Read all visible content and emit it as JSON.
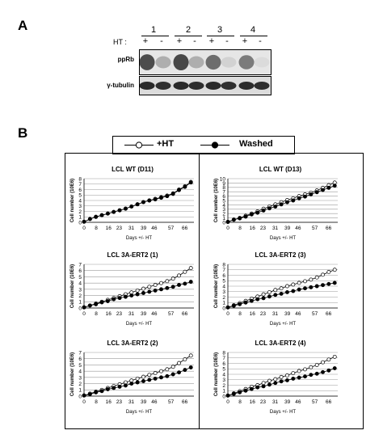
{
  "panel_a": {
    "letter": "A",
    "lanes": [
      "1",
      "2",
      "3",
      "4"
    ],
    "ht_label": "HT :",
    "ht_signs": [
      "+",
      "-",
      "+",
      "-",
      "+",
      "-",
      "+",
      "-"
    ],
    "blots": [
      {
        "label": "ppRb",
        "band_intensities": [
          0.78,
          0.3,
          0.8,
          0.3,
          0.62,
          0.12,
          0.55,
          0.08
        ]
      },
      {
        "label": "γ-tubulin",
        "band_intensities": [
          0.95,
          0.92,
          0.95,
          0.93,
          0.95,
          0.92,
          0.94,
          0.93
        ]
      }
    ]
  },
  "panel_b": {
    "letter": "B",
    "legend": {
      "items": [
        {
          "label": "+HT",
          "marker": "open-circle"
        },
        {
          "label": "Washed",
          "marker": "filled-circle"
        }
      ]
    }
  },
  "chart_data": [
    {
      "type": "line",
      "title": "LCL WT (D11)",
      "xlabel": "Days +/- HT",
      "ylabel": "Cell number (10E6)",
      "xticks": [
        "0",
        "8",
        "16",
        "23",
        "31",
        "39",
        "46",
        "57",
        "66"
      ],
      "ylim": [
        0,
        8
      ],
      "yticks": [
        0,
        1,
        2,
        3,
        4,
        5,
        6,
        7,
        8
      ],
      "series": [
        {
          "name": "+HT",
          "marker": "open",
          "values": [
            0.1,
            0.6,
            1.0,
            1.3,
            1.6,
            1.9,
            2.2,
            2.5,
            2.9,
            3.3,
            3.7,
            4.0,
            4.3,
            4.6,
            4.9,
            5.3,
            6.0,
            6.6,
            7.4
          ]
        },
        {
          "name": "Washed",
          "marker": "filled",
          "values": [
            0.1,
            0.6,
            1.0,
            1.3,
            1.6,
            1.9,
            2.2,
            2.5,
            2.9,
            3.3,
            3.7,
            4.0,
            4.2,
            4.5,
            4.8,
            5.2,
            5.9,
            6.5,
            7.3
          ]
        }
      ]
    },
    {
      "type": "line",
      "title": "LCL WT (D13)",
      "xlabel": "Days +/- HT",
      "ylabel": "Cell number (10E6)",
      "xticks": [
        "0",
        "8",
        "16",
        "23",
        "31",
        "39",
        "46",
        "57",
        "66"
      ],
      "ylim": [
        0,
        10
      ],
      "yticks": [
        0,
        1,
        2,
        3,
        4,
        5,
        6,
        7,
        8,
        9,
        10
      ],
      "series": [
        {
          "name": "+HT",
          "marker": "open",
          "values": [
            0.1,
            0.6,
            1.0,
            1.5,
            2.0,
            2.5,
            3.1,
            3.6,
            4.1,
            4.6,
            5.1,
            5.5,
            6.0,
            6.4,
            6.8,
            7.3,
            7.9,
            8.5,
            9.1
          ]
        },
        {
          "name": "Washed",
          "marker": "filled",
          "values": [
            0.1,
            0.6,
            0.9,
            1.3,
            1.8,
            2.2,
            2.7,
            3.2,
            3.6,
            4.1,
            4.6,
            5.0,
            5.5,
            5.9,
            6.4,
            6.9,
            7.4,
            7.9,
            8.4
          ]
        }
      ]
    },
    {
      "type": "line",
      "title": "LCL 3A-ERT2 (1)",
      "xlabel": "Days +/- HT",
      "ylabel": "Cell number (10E6)",
      "xticks": [
        "0",
        "8",
        "16",
        "23",
        "31",
        "39",
        "46",
        "57",
        "66"
      ],
      "ylim": [
        0,
        7
      ],
      "yticks": [
        0,
        1,
        2,
        3,
        4,
        5,
        6,
        7
      ],
      "series": [
        {
          "name": "+HT",
          "marker": "open",
          "values": [
            0.1,
            0.4,
            0.7,
            1.0,
            1.3,
            1.6,
            1.9,
            2.2,
            2.5,
            2.8,
            3.1,
            3.4,
            3.7,
            4.0,
            4.3,
            4.7,
            5.2,
            5.8,
            6.4
          ]
        },
        {
          "name": "Washed",
          "marker": "filled",
          "values": [
            0.1,
            0.4,
            0.6,
            0.9,
            1.1,
            1.4,
            1.6,
            1.8,
            2.0,
            2.2,
            2.4,
            2.6,
            2.8,
            3.0,
            3.2,
            3.4,
            3.7,
            3.9,
            4.2
          ]
        }
      ]
    },
    {
      "type": "line",
      "title": "LCL 3A-ERT2 (3)",
      "xlabel": "Days +/- HT",
      "ylabel": "Cell number (10E6)",
      "xticks": [
        "0",
        "8",
        "16",
        "23",
        "31",
        "39",
        "46",
        "57",
        "66"
      ],
      "ylim": [
        0,
        8
      ],
      "yticks": [
        0,
        1,
        2,
        3,
        4,
        5,
        6,
        7,
        8
      ],
      "series": [
        {
          "name": "+HT",
          "marker": "open",
          "values": [
            0.1,
            0.5,
            0.9,
            1.3,
            1.7,
            2.1,
            2.5,
            2.9,
            3.3,
            3.6,
            4.0,
            4.3,
            4.6,
            4.9,
            5.2,
            5.6,
            6.1,
            6.6,
            7.0
          ]
        },
        {
          "name": "Washed",
          "marker": "filled",
          "values": [
            0.1,
            0.4,
            0.7,
            1.0,
            1.3,
            1.6,
            1.8,
            2.1,
            2.4,
            2.6,
            2.9,
            3.1,
            3.4,
            3.6,
            3.8,
            4.0,
            4.2,
            4.4,
            4.6
          ]
        }
      ]
    },
    {
      "type": "line",
      "title": "LCL 3A-ERT2 (2)",
      "xlabel": "Days +/- HT",
      "ylabel": "Cell number (10E6)",
      "xticks": [
        "0",
        "8",
        "16",
        "23",
        "31",
        "39",
        "46",
        "57",
        "66"
      ],
      "ylim": [
        0,
        7
      ],
      "yticks": [
        0,
        1,
        2,
        3,
        4,
        5,
        6,
        7
      ],
      "series": [
        {
          "name": "+HT",
          "marker": "open",
          "values": [
            0.1,
            0.4,
            0.7,
            1.0,
            1.3,
            1.6,
            1.9,
            2.2,
            2.5,
            2.8,
            3.1,
            3.4,
            3.7,
            4.0,
            4.3,
            4.7,
            5.3,
            5.9,
            6.5
          ]
        },
        {
          "name": "Washed",
          "marker": "filled",
          "values": [
            0.1,
            0.3,
            0.6,
            0.8,
            1.1,
            1.3,
            1.5,
            1.7,
            2.0,
            2.2,
            2.4,
            2.6,
            2.8,
            3.0,
            3.2,
            3.5,
            3.8,
            4.2,
            4.6
          ]
        }
      ]
    },
    {
      "type": "line",
      "title": "LCL 3A-ERT2 (4)",
      "xlabel": "Days +/- HT",
      "ylabel": "Cell number (10E6)",
      "xticks": [
        "0",
        "8",
        "16",
        "23",
        "31",
        "39",
        "46",
        "57",
        "66"
      ],
      "ylim": [
        0,
        8
      ],
      "yticks": [
        0,
        1,
        2,
        3,
        4,
        5,
        6,
        7,
        8
      ],
      "series": [
        {
          "name": "+HT",
          "marker": "open",
          "values": [
            0.1,
            0.5,
            0.9,
            1.3,
            1.7,
            2.0,
            2.4,
            2.8,
            3.1,
            3.5,
            3.8,
            4.2,
            4.6,
            4.9,
            5.3,
            5.7,
            6.2,
            6.7,
            7.2
          ]
        },
        {
          "name": "Washed",
          "marker": "filled",
          "values": [
            0.1,
            0.4,
            0.7,
            1.0,
            1.3,
            1.6,
            1.8,
            2.1,
            2.4,
            2.7,
            2.9,
            3.2,
            3.4,
            3.6,
            3.9,
            4.1,
            4.4,
            4.7,
            5.1
          ]
        }
      ]
    }
  ]
}
